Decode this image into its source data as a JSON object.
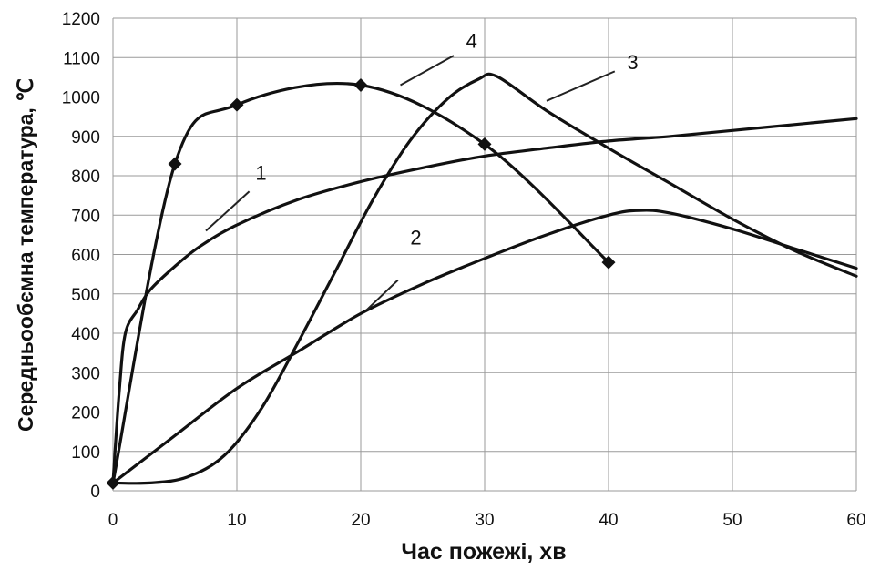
{
  "chart_data": {
    "type": "line",
    "title": "",
    "xlabel": "Час пожежі, хв",
    "ylabel": "Середньообємна температура, ℃",
    "xlim": [
      0,
      60
    ],
    "ylim": [
      0,
      1200
    ],
    "xticks": [
      0,
      10,
      20,
      30,
      40,
      50,
      60
    ],
    "yticks": [
      0,
      100,
      200,
      300,
      400,
      500,
      600,
      700,
      800,
      900,
      1000,
      1100,
      1200
    ],
    "grid": true,
    "legend": "none",
    "series": [
      {
        "name": "1",
        "markers": false,
        "x": [
          0,
          0.5,
          1,
          2,
          3,
          5,
          7,
          10,
          15,
          20,
          25,
          30,
          35,
          40,
          45,
          50,
          55,
          60
        ],
        "y": [
          20,
          250,
          400,
          460,
          510,
          570,
          620,
          675,
          740,
          785,
          820,
          850,
          870,
          888,
          900,
          915,
          930,
          945
        ]
      },
      {
        "name": "2",
        "markers": false,
        "x": [
          0,
          5,
          10,
          15,
          20,
          25,
          30,
          35,
          40,
          42.5,
          45,
          50,
          55,
          60
        ],
        "y": [
          20,
          140,
          260,
          355,
          450,
          525,
          590,
          650,
          700,
          712,
          705,
          665,
          615,
          565
        ]
      },
      {
        "name": "3",
        "markers": false,
        "x": [
          0,
          3,
          6,
          9,
          12,
          15,
          18,
          21,
          24,
          27,
          29.5,
          31,
          35,
          40,
          45,
          50,
          55,
          60
        ],
        "y": [
          20,
          20,
          35,
          90,
          210,
          380,
          560,
          740,
          890,
          995,
          1045,
          1052,
          965,
          870,
          780,
          690,
          610,
          545
        ]
      },
      {
        "name": "4",
        "markers": true,
        "x": [
          0,
          5,
          10,
          20,
          30,
          40
        ],
        "y": [
          20,
          830,
          980,
          1030,
          880,
          580
        ]
      }
    ],
    "annotations": [
      {
        "text": "1",
        "x": 11.5,
        "y": 790
      },
      {
        "text": "2",
        "x": 24,
        "y": 625
      },
      {
        "text": "3",
        "x": 41.5,
        "y": 1070
      },
      {
        "text": "4",
        "x": 28.5,
        "y": 1125
      }
    ]
  }
}
